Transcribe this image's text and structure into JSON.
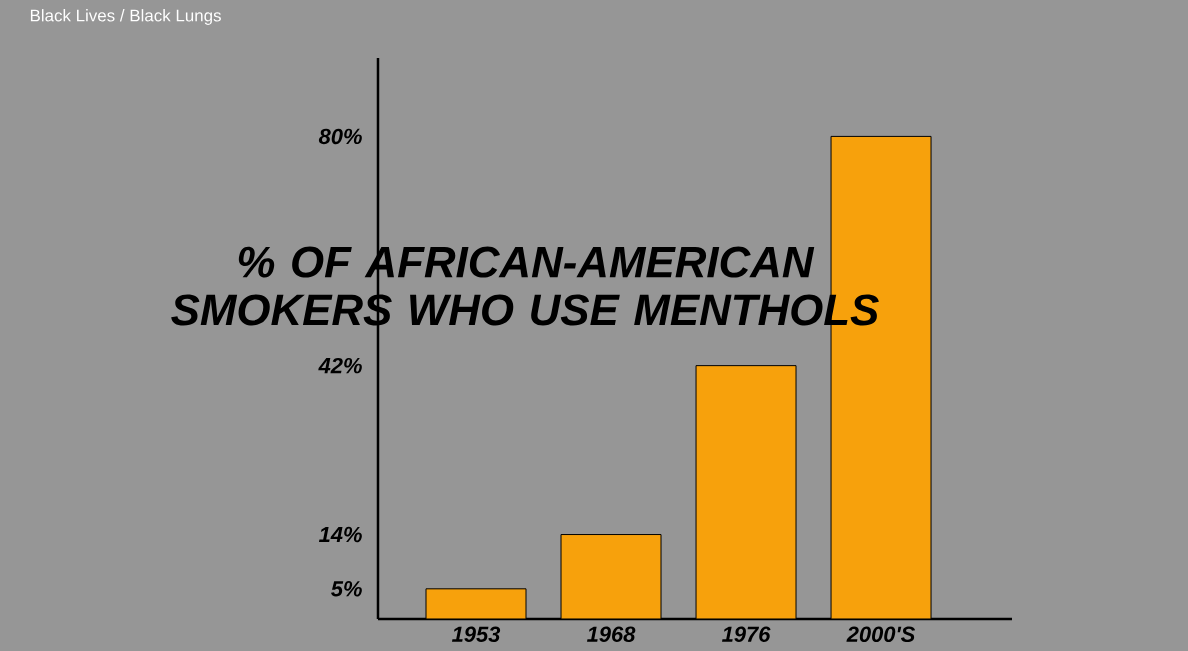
{
  "chart_data": {
    "type": "bar",
    "title": "% OF AFRICAN-AMERICAN SMOKERS WHO USE MENTHOLS",
    "annotations": [
      "Black Lives / Black Lungs"
    ],
    "categories": [
      "1953",
      "1968",
      "1976",
      "2000'S"
    ],
    "values": [
      5,
      14,
      42,
      80
    ],
    "color": "#f7a10c",
    "ylim": [
      0,
      93
    ],
    "yticks": [
      {
        "value": 5,
        "label": "5%"
      },
      {
        "value": 14,
        "label": "14%"
      },
      {
        "value": 42,
        "label": "42%"
      },
      {
        "value": 80,
        "label": "80%"
      }
    ],
    "grid": false
  }
}
